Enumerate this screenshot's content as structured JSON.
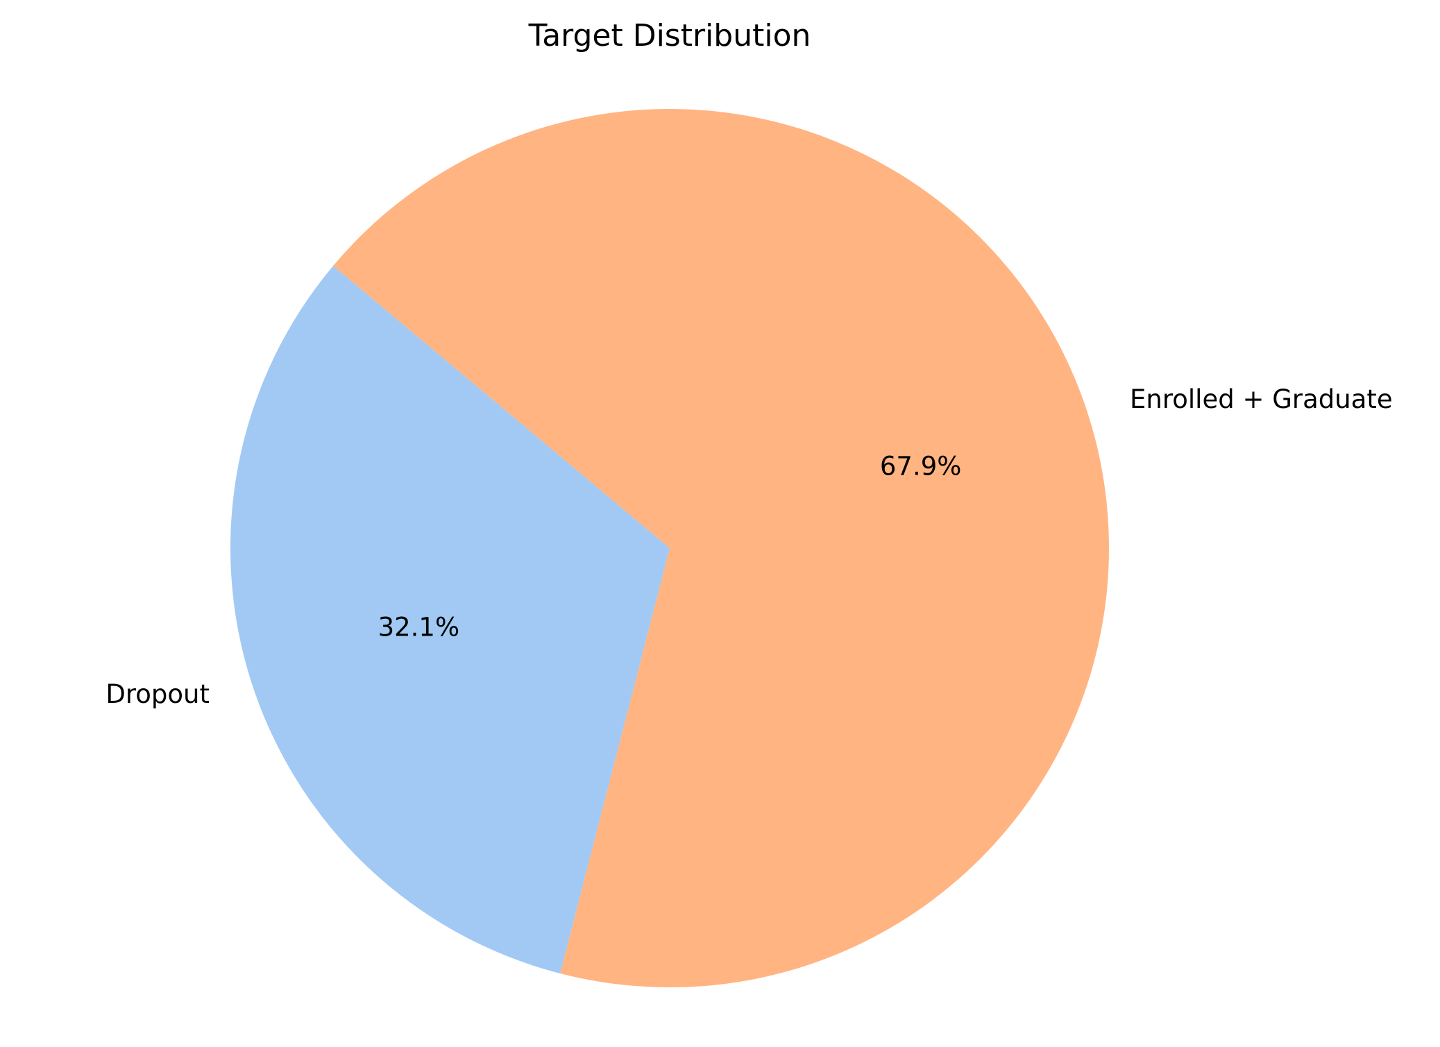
{
  "chart_data": {
    "type": "pie",
    "title": "Target Distribution",
    "categories": [
      "Dropout",
      "Enrolled + Graduate"
    ],
    "values": [
      32.1,
      67.9
    ],
    "value_labels": [
      "32.1%",
      "67.9%"
    ],
    "colors": [
      "#a1c9f4",
      "#ffb482"
    ],
    "start_angle_deg": 140,
    "direction": "counterclockwise",
    "legend": "none"
  }
}
